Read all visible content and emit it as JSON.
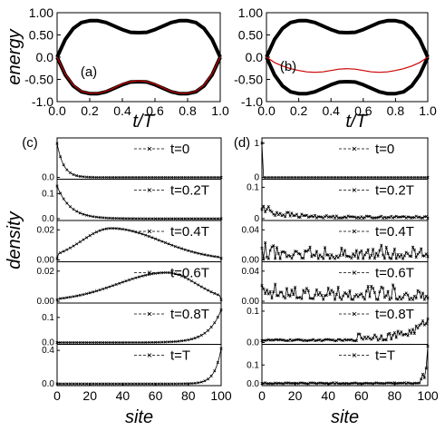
{
  "chart_data": [
    {
      "type": "line",
      "panel": "(a)",
      "xlabel": "t/T",
      "ylabel": "energy",
      "xlim": [
        0.0,
        1.0
      ],
      "ylim": [
        -1.0,
        1.0
      ],
      "xticks": [
        "0.0",
        "0.2",
        "0.4",
        "0.6",
        "0.8",
        "1.0"
      ],
      "yticks": [
        "1.00",
        "0.50",
        "0.0",
        "-0.50",
        "-1.0"
      ],
      "series": [
        {
          "role": "upper-band",
          "color": "#000000",
          "x": [
            0,
            0.05,
            0.1,
            0.15,
            0.2,
            0.25,
            0.3,
            0.35,
            0.4,
            0.45,
            0.5,
            0.55,
            0.6,
            0.65,
            0.7,
            0.75,
            0.8,
            0.85,
            0.9,
            0.95,
            1.0
          ],
          "y": [
            0.0,
            0.4,
            0.65,
            0.78,
            0.82,
            0.82,
            0.78,
            0.7,
            0.62,
            0.56,
            0.55,
            0.56,
            0.62,
            0.7,
            0.78,
            0.82,
            0.82,
            0.78,
            0.65,
            0.4,
            0.0
          ]
        },
        {
          "role": "lower-band",
          "color": "#000000",
          "x": [
            0,
            0.05,
            0.1,
            0.15,
            0.2,
            0.25,
            0.3,
            0.35,
            0.4,
            0.45,
            0.5,
            0.55,
            0.6,
            0.65,
            0.7,
            0.75,
            0.8,
            0.85,
            0.9,
            0.95,
            1.0
          ],
          "y": [
            0.0,
            -0.4,
            -0.65,
            -0.78,
            -0.82,
            -0.82,
            -0.78,
            -0.7,
            -0.62,
            -0.56,
            -0.55,
            -0.56,
            -0.62,
            -0.7,
            -0.78,
            -0.82,
            -0.82,
            -0.78,
            -0.65,
            -0.4,
            0.0
          ]
        },
        {
          "role": "edge-state",
          "color": "#cc0000",
          "x": [
            0,
            0.05,
            0.1,
            0.15,
            0.2,
            0.25,
            0.3,
            0.35,
            0.4,
            0.45,
            0.5,
            0.55,
            0.6,
            0.65,
            0.7,
            0.75,
            0.8,
            0.85,
            0.9,
            0.95,
            1.0
          ],
          "y": [
            0.0,
            -0.38,
            -0.63,
            -0.77,
            -0.81,
            -0.81,
            -0.77,
            -0.69,
            -0.6,
            -0.55,
            -0.53,
            -0.55,
            -0.6,
            -0.69,
            -0.77,
            -0.81,
            -0.81,
            -0.77,
            -0.63,
            -0.38,
            0.0
          ]
        }
      ]
    },
    {
      "type": "line",
      "panel": "(b)",
      "xlabel": "t/T",
      "ylabel": "",
      "xlim": [
        0.0,
        1.0
      ],
      "ylim": [
        -1.0,
        1.0
      ],
      "xticks": [
        "0.0",
        "0.2",
        "0.4",
        "0.6",
        "0.8",
        "1.0"
      ],
      "yticks": [
        "1.00",
        "0.50",
        "0.0",
        "-0.50",
        "-1.0"
      ],
      "series": [
        {
          "role": "upper-band",
          "color": "#000000",
          "x": [
            0,
            0.05,
            0.1,
            0.15,
            0.2,
            0.25,
            0.3,
            0.35,
            0.4,
            0.45,
            0.5,
            0.55,
            0.6,
            0.65,
            0.7,
            0.75,
            0.8,
            0.85,
            0.9,
            0.95,
            1.0
          ],
          "y": [
            0.0,
            0.4,
            0.65,
            0.78,
            0.82,
            0.82,
            0.78,
            0.7,
            0.62,
            0.56,
            0.55,
            0.56,
            0.62,
            0.7,
            0.78,
            0.82,
            0.82,
            0.78,
            0.65,
            0.4,
            0.0
          ]
        },
        {
          "role": "lower-band",
          "color": "#000000",
          "x": [
            0,
            0.05,
            0.1,
            0.15,
            0.2,
            0.25,
            0.3,
            0.35,
            0.4,
            0.45,
            0.5,
            0.55,
            0.6,
            0.65,
            0.7,
            0.75,
            0.8,
            0.85,
            0.9,
            0.95,
            1.0
          ],
          "y": [
            0.0,
            -0.4,
            -0.65,
            -0.78,
            -0.82,
            -0.82,
            -0.78,
            -0.7,
            -0.62,
            -0.56,
            -0.55,
            -0.56,
            -0.62,
            -0.7,
            -0.78,
            -0.82,
            -0.82,
            -0.78,
            -0.65,
            -0.4,
            0.0
          ]
        },
        {
          "role": "edge-state",
          "color": "#cc0000",
          "x": [
            0,
            0.05,
            0.1,
            0.15,
            0.2,
            0.25,
            0.3,
            0.35,
            0.4,
            0.45,
            0.5,
            0.55,
            0.6,
            0.65,
            0.7,
            0.75,
            0.8,
            0.85,
            0.9,
            0.95,
            1.0
          ],
          "y": [
            0.0,
            -0.12,
            -0.2,
            -0.26,
            -0.3,
            -0.33,
            -0.34,
            -0.33,
            -0.3,
            -0.27,
            -0.26,
            -0.27,
            -0.3,
            -0.33,
            -0.34,
            -0.33,
            -0.3,
            -0.26,
            -0.2,
            -0.12,
            0.0
          ]
        }
      ]
    },
    {
      "type": "line",
      "panel": "(c)",
      "xlabel": "site",
      "ylabel": "density",
      "xlim": [
        0,
        100
      ],
      "xticks": [
        "0",
        "20",
        "40",
        "60",
        "80",
        "100"
      ],
      "subplots": [
        {
          "legend": "t=0",
          "ylim": [
            0,
            0.5
          ],
          "yticks": [
            "0.0"
          ],
          "profile": "left-edge",
          "peak": 0.45,
          "width": 4
        },
        {
          "legend": "t=0.2T",
          "ylim": [
            0,
            0.15
          ],
          "yticks": [
            "0.1",
            "0.0"
          ],
          "profile": "left-edge",
          "peak": 0.13,
          "width": 8
        },
        {
          "legend": "t=0.4T",
          "ylim": [
            0,
            0.025
          ],
          "yticks": [
            "0.02",
            "0.00"
          ],
          "profile": "hump",
          "peak": 0.021,
          "center": 33,
          "sigma_left": 18,
          "sigma_right": 30
        },
        {
          "legend": "t=0.6T",
          "ylim": [
            0,
            0.025
          ],
          "yticks": [
            "0.02",
            "0.00"
          ],
          "profile": "hump",
          "peak": 0.019,
          "center": 67,
          "sigma_left": 30,
          "sigma_right": 18
        },
        {
          "legend": "t=0.8T",
          "ylim": [
            0,
            0.15
          ],
          "yticks": [
            "0.1",
            "0.0"
          ],
          "profile": "right-edge",
          "peak": 0.13,
          "width": 8
        },
        {
          "legend": "t=T",
          "ylim": [
            0,
            0.45
          ],
          "yticks": [
            "0.4",
            "0.0"
          ],
          "profile": "right-edge",
          "peak": 0.42,
          "width": 4
        }
      ]
    },
    {
      "type": "line",
      "panel": "(d)",
      "xlabel": "site",
      "ylabel": "",
      "xlim": [
        0,
        100
      ],
      "xticks": [
        "0",
        "20",
        "40",
        "60",
        "80",
        "100"
      ],
      "subplots": [
        {
          "legend": "t=0",
          "ylim": [
            0,
            1.1
          ],
          "yticks": [
            "1",
            "0"
          ],
          "profile": "spike-left",
          "peak": 1.0
        },
        {
          "legend": "t=0.2T",
          "ylim": [
            0,
            0.12
          ],
          "yticks": [
            "0.1",
            "0"
          ],
          "profile": "noisy-left",
          "peak": 0.05
        },
        {
          "legend": "t=0.4T",
          "ylim": [
            0,
            0.05
          ],
          "yticks": [
            "0.04",
            "0.00"
          ],
          "profile": "noisy",
          "peak": 0.03
        },
        {
          "legend": "t=0.6T",
          "ylim": [
            0,
            0.05
          ],
          "yticks": [
            "0.04",
            "0.00"
          ],
          "profile": "noisy",
          "peak": 0.04
        },
        {
          "legend": "t=0.8T",
          "ylim": [
            0,
            0.12
          ],
          "yticks": [
            "0.1",
            "0.0"
          ],
          "profile": "noisy-right",
          "peak": 0.1
        },
        {
          "legend": "t=T",
          "ylim": [
            0,
            0.2
          ],
          "yticks": [
            "0.1",
            "0.0"
          ],
          "profile": "noisy-right-spike",
          "peak": 0.2
        }
      ]
    }
  ]
}
